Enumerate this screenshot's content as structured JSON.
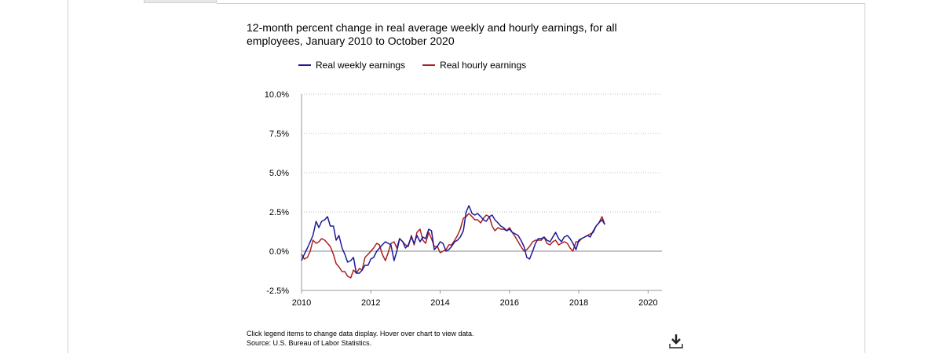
{
  "chart_data": {
    "type": "line",
    "title": "12-month percent change in real average weekly and hourly earnings, for all employees, January 2010 to October 2020",
    "xlabel": "",
    "ylabel": "",
    "x_ticks": [
      "2010",
      "2012",
      "2014",
      "2016",
      "2018",
      "2020"
    ],
    "y_ticks": [
      "10.0%",
      "7.5%",
      "5.0%",
      "2.5%",
      "0.0%",
      "-2.5%"
    ],
    "xlim": [
      2010,
      2020.4
    ],
    "ylim": [
      -2.5,
      10.0
    ],
    "grid": true,
    "legend_position": "top",
    "series": [
      {
        "name": "Real weekly earnings",
        "color": "#1a1a99",
        "x": [
          2010.0,
          2010.08,
          2010.17,
          2010.25,
          2010.33,
          2010.42,
          2010.5,
          2010.58,
          2010.67,
          2010.75,
          2010.83,
          2010.92,
          2011.0,
          2011.08,
          2011.17,
          2011.25,
          2011.33,
          2011.42,
          2011.5,
          2011.58,
          2011.67,
          2011.75,
          2011.83,
          2011.92,
          2012.0,
          2012.08,
          2012.17,
          2012.25,
          2012.33,
          2012.42,
          2012.5,
          2012.58,
          2012.67,
          2012.75,
          2012.83,
          2012.92,
          2013.0,
          2013.08,
          2013.17,
          2013.25,
          2013.33,
          2013.42,
          2013.5,
          2013.58,
          2013.67,
          2013.75,
          2013.83,
          2013.92,
          2014.0,
          2014.08,
          2014.17,
          2014.25,
          2014.33,
          2014.42,
          2014.5,
          2014.58,
          2014.67,
          2014.75,
          2014.83,
          2014.92,
          2015.0,
          2015.08,
          2015.17,
          2015.25,
          2015.33,
          2015.42,
          2015.5,
          2015.58,
          2015.67,
          2015.75,
          2015.83,
          2015.92,
          2016.0,
          2016.08,
          2016.17,
          2016.25,
          2016.33,
          2016.42,
          2016.5,
          2016.58,
          2016.67,
          2016.75,
          2016.83,
          2016.92,
          2017.0,
          2017.08,
          2017.17,
          2017.25,
          2017.33,
          2017.42,
          2017.5,
          2017.58,
          2017.67,
          2017.75,
          2017.83,
          2017.92,
          2018.0,
          2018.08,
          2018.17,
          2018.25,
          2018.33,
          2018.42,
          2018.5,
          2018.58,
          2018.67,
          2018.75
        ],
        "values": [
          -0.6,
          -0.2,
          0.2,
          0.6,
          1.0,
          1.9,
          1.5,
          1.9,
          2.0,
          2.2,
          1.6,
          1.6,
          0.7,
          1.0,
          0.2,
          -0.2,
          -0.7,
          -0.6,
          -0.4,
          -1.4,
          -1.4,
          -1.2,
          -0.9,
          -0.9,
          -0.5,
          -0.4,
          0.0,
          0.2,
          0.4,
          0.6,
          0.5,
          0.4,
          -0.6,
          0.0,
          0.8,
          0.6,
          0.2,
          0.4,
          0.9,
          0.5,
          1.0,
          0.6,
          0.9,
          0.8,
          1.4,
          1.3,
          0.1,
          0.3,
          0.6,
          0.5,
          0.0,
          0.1,
          0.3,
          0.6,
          0.7,
          0.9,
          1.3,
          2.5,
          2.9,
          2.4,
          2.3,
          2.4,
          2.2,
          2.0,
          1.9,
          2.2,
          2.3,
          2.0,
          1.8,
          1.6,
          1.5,
          1.3,
          1.4,
          1.2,
          1.1,
          1.0,
          0.7,
          0.3,
          -0.4,
          -0.5,
          0.0,
          0.5,
          0.8,
          0.8,
          0.9,
          0.7,
          0.6,
          0.9,
          1.2,
          0.8,
          0.6,
          0.9,
          1.0,
          0.8,
          0.5,
          0.1,
          0.7,
          0.8,
          0.9,
          1.0,
          0.9,
          1.3,
          1.6,
          1.8,
          2.0,
          1.7
        ]
      },
      {
        "name": "Real hourly earnings",
        "color": "#aa1f1f",
        "x": [
          2010.0,
          2010.08,
          2010.17,
          2010.25,
          2010.33,
          2010.42,
          2010.5,
          2010.58,
          2010.67,
          2010.75,
          2010.83,
          2010.92,
          2011.0,
          2011.08,
          2011.17,
          2011.25,
          2011.33,
          2011.42,
          2011.5,
          2011.58,
          2011.67,
          2011.75,
          2011.83,
          2011.92,
          2012.0,
          2012.08,
          2012.17,
          2012.25,
          2012.33,
          2012.42,
          2012.5,
          2012.58,
          2012.67,
          2012.75,
          2012.83,
          2012.92,
          2013.0,
          2013.08,
          2013.17,
          2013.25,
          2013.33,
          2013.42,
          2013.5,
          2013.58,
          2013.67,
          2013.75,
          2013.83,
          2013.92,
          2014.0,
          2014.08,
          2014.17,
          2014.25,
          2014.33,
          2014.42,
          2014.5,
          2014.58,
          2014.67,
          2014.75,
          2014.83,
          2014.92,
          2015.0,
          2015.08,
          2015.17,
          2015.25,
          2015.33,
          2015.42,
          2015.5,
          2015.58,
          2015.67,
          2015.75,
          2015.83,
          2015.92,
          2016.0,
          2016.08,
          2016.17,
          2016.25,
          2016.33,
          2016.42,
          2016.5,
          2016.58,
          2016.67,
          2016.75,
          2016.83,
          2016.92,
          2017.0,
          2017.08,
          2017.17,
          2017.25,
          2017.33,
          2017.42,
          2017.5,
          2017.58,
          2017.67,
          2017.75,
          2017.83,
          2017.92,
          2018.0,
          2018.08,
          2018.17,
          2018.25,
          2018.33,
          2018.42,
          2018.5,
          2018.58,
          2018.67,
          2018.75
        ],
        "values": [
          -0.2,
          -0.5,
          -0.4,
          0.0,
          0.7,
          0.5,
          0.6,
          0.8,
          0.7,
          0.5,
          0.3,
          -0.2,
          -0.8,
          -1.0,
          -1.3,
          -1.3,
          -1.6,
          -1.7,
          -1.2,
          -1.4,
          -1.1,
          -1.2,
          -0.4,
          -0.2,
          0.0,
          0.2,
          0.5,
          0.4,
          -0.2,
          -0.6,
          -0.1,
          0.5,
          0.6,
          0.2,
          0.8,
          0.6,
          0.4,
          0.3,
          1.0,
          0.4,
          1.2,
          1.4,
          0.7,
          0.5,
          1.2,
          0.8,
          0.3,
          0.3,
          -0.1,
          0.0,
          0.1,
          0.4,
          0.4,
          0.7,
          1.0,
          1.4,
          2.1,
          2.2,
          2.4,
          2.2,
          2.0,
          2.0,
          1.8,
          2.1,
          2.3,
          2.2,
          1.6,
          1.3,
          1.5,
          1.4,
          1.4,
          1.3,
          1.5,
          1.2,
          0.9,
          0.6,
          0.3,
          0.0,
          0.1,
          0.3,
          0.6,
          0.7,
          0.7,
          0.7,
          0.9,
          0.5,
          0.4,
          0.6,
          0.7,
          0.4,
          0.5,
          0.6,
          0.5,
          0.2,
          0.0,
          0.6,
          0.6,
          0.8,
          0.9,
          1.0,
          1.1,
          1.2,
          1.6,
          1.8,
          2.2,
          1.7
        ]
      }
    ]
  },
  "footer": {
    "note": "Click legend items to change data display. Hover over chart to view data.",
    "source": "Source: U.S. Bureau of Labor Statistics."
  },
  "icons": {
    "download": "download-icon"
  }
}
